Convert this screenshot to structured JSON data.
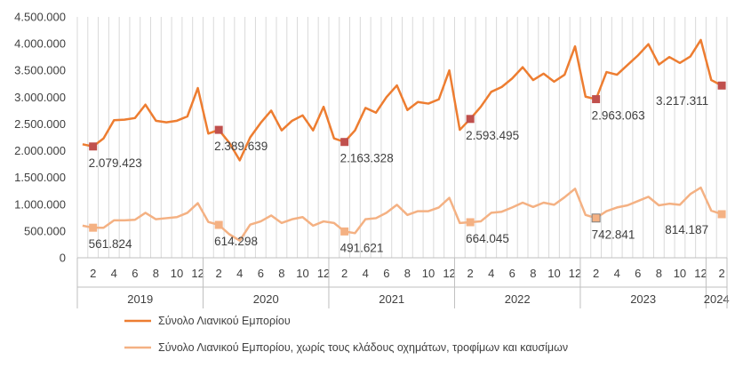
{
  "chart_data": {
    "type": "line",
    "ylim": [
      0,
      4500000
    ],
    "y_ticks": [
      "0",
      "500.000",
      "1.000.000",
      "1.500.000",
      "2.000.000",
      "2.500.000",
      "3.000.000",
      "3.500.000",
      "4.000.000",
      "4.500.000"
    ],
    "x_month_ticks": [
      "2",
      "4",
      "6",
      "8",
      "10",
      "12",
      "2",
      "4",
      "6",
      "8",
      "10",
      "12",
      "2",
      "4",
      "6",
      "8",
      "10",
      "12",
      "2",
      "4",
      "6",
      "8",
      "10",
      "12",
      "2",
      "4",
      "6",
      "8",
      "10",
      "12",
      "2"
    ],
    "x_years": [
      "2019",
      "2020",
      "2021",
      "2022",
      "2023",
      "2024"
    ],
    "grid": "vertical",
    "legend_position": "bottom-left",
    "series": [
      {
        "name": "Σύνολο Λιανικού Εμπορίου",
        "color": "#ed7d31",
        "marker_color": "#c0504d",
        "values": [
          2120000,
          2079423,
          2230000,
          2570000,
          2580000,
          2610000,
          2860000,
          2560000,
          2530000,
          2560000,
          2640000,
          3170000,
          2320000,
          2389639,
          2150000,
          1820000,
          2250000,
          2520000,
          2750000,
          2380000,
          2560000,
          2660000,
          2380000,
          2820000,
          2230000,
          2163328,
          2380000,
          2800000,
          2710000,
          3000000,
          3220000,
          2760000,
          2910000,
          2880000,
          2960000,
          3500000,
          2390000,
          2593495,
          2820000,
          3100000,
          3190000,
          3350000,
          3560000,
          3320000,
          3440000,
          3290000,
          3420000,
          3950000,
          3010000,
          2963063,
          3470000,
          3420000,
          3600000,
          3780000,
          3990000,
          3610000,
          3750000,
          3640000,
          3760000,
          4070000,
          3320000,
          3217311
        ],
        "labels": [
          {
            "index": 1,
            "text": "2.079.423"
          },
          {
            "index": 13,
            "text": "2.389.639"
          },
          {
            "index": 25,
            "text": "2.163.328"
          },
          {
            "index": 37,
            "text": "2.593.495"
          },
          {
            "index": 49,
            "text": "2.963.063"
          },
          {
            "index": 61,
            "text": "3.217.311"
          }
        ]
      },
      {
        "name": "Σύνολο Λιανικού Εμπορίου, χωρίς τους κλάδους οχημάτων, τροφίμων και καυσίμων",
        "color": "#f4b183",
        "marker_color": "#f4b183",
        "values": [
          600000,
          561824,
          560000,
          700000,
          700000,
          710000,
          840000,
          720000,
          740000,
          760000,
          840000,
          1020000,
          670000,
          614298,
          440000,
          320000,
          620000,
          680000,
          790000,
          650000,
          720000,
          760000,
          600000,
          680000,
          650000,
          491621,
          460000,
          720000,
          740000,
          840000,
          990000,
          800000,
          870000,
          870000,
          940000,
          1120000,
          650000,
          664045,
          680000,
          840000,
          860000,
          940000,
          1030000,
          950000,
          1030000,
          990000,
          1130000,
          1290000,
          800000,
          742841,
          870000,
          940000,
          980000,
          1060000,
          1140000,
          980000,
          1010000,
          990000,
          1190000,
          1310000,
          880000,
          814187
        ],
        "labels": [
          {
            "index": 1,
            "text": "561.824"
          },
          {
            "index": 13,
            "text": "614.298"
          },
          {
            "index": 25,
            "text": "491.621"
          },
          {
            "index": 37,
            "text": "664.045"
          },
          {
            "index": 49,
            "text": "742.841"
          },
          {
            "index": 61,
            "text": "814.187"
          }
        ]
      }
    ]
  }
}
